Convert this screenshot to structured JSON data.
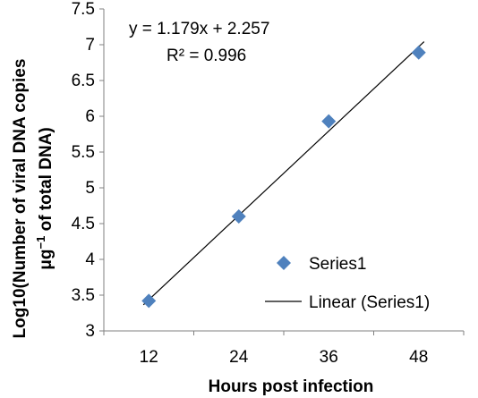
{
  "chart_data": {
    "type": "scatter",
    "xlabel": "Hours post infection",
    "ylabel_line1": "Log10(Number of viral DNA copies",
    "ylabel_line2_pre": "μg",
    "ylabel_line2_sup": "−1",
    "ylabel_line2_post": " of total DNA)",
    "x_tick_labels": [
      "12",
      "24",
      "36",
      "48"
    ],
    "y_tick_labels": [
      "3",
      "3.5",
      "4",
      "4.5",
      "5",
      "5.5",
      "6",
      "6.5",
      "7",
      "7.5"
    ],
    "ylim": [
      3,
      7.5
    ],
    "series": [
      {
        "name": "Series1",
        "color": "#4f81bd",
        "marker": "diamond",
        "x": [
          1,
          2,
          3,
          4
        ],
        "y": [
          3.42,
          4.6,
          5.93,
          6.89
        ]
      }
    ],
    "trendline": {
      "name": "Linear (Series1)",
      "slope": 1.179,
      "intercept": 2.257,
      "equation": "y = 1.179x + 2.257",
      "r_squared": "R² = 0.996",
      "color": "#000000"
    },
    "legend_position": "bottom-right",
    "grid": false
  }
}
